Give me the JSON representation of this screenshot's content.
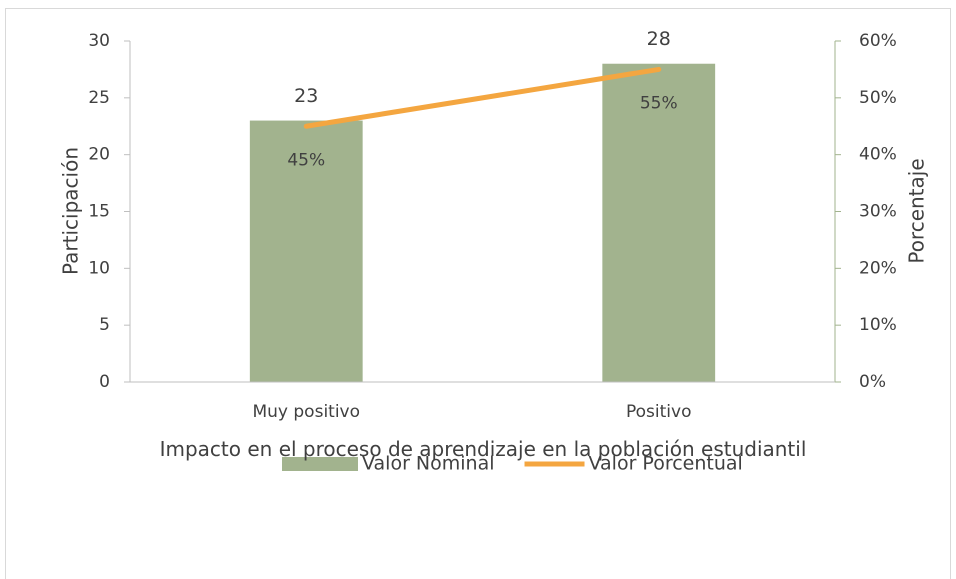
{
  "chart_data": {
    "type": "bar",
    "categories": [
      "Muy positivo",
      "Positivo"
    ],
    "series": [
      {
        "name": "Valor Nominal",
        "type": "bar",
        "color": "#a2b38e",
        "values": [
          23,
          28
        ]
      },
      {
        "name": "Valor Porcentual",
        "type": "line",
        "axis": "y2",
        "color": "#f4a640",
        "values": [
          45,
          55
        ],
        "value_labels": [
          "45%",
          "55%"
        ]
      }
    ],
    "ylim": [
      0,
      30
    ],
    "yticks": [
      0,
      5,
      10,
      15,
      20,
      25,
      30
    ],
    "y2lim": [
      0,
      60
    ],
    "y2ticks": [
      {
        "value": 0,
        "label": "0%"
      },
      {
        "value": 10,
        "label": "10%"
      },
      {
        "value": 20,
        "label": "20%"
      },
      {
        "value": 30,
        "label": "30%"
      },
      {
        "value": 40,
        "label": "40%"
      },
      {
        "value": 50,
        "label": "50%"
      },
      {
        "value": 60,
        "label": "60%"
      }
    ],
    "xlabel": "Impacto en el proceso de aprendizaje en la población estudiantil",
    "ylabel": "Participación",
    "y2label": "Porcentaje",
    "legend": "bottom"
  }
}
